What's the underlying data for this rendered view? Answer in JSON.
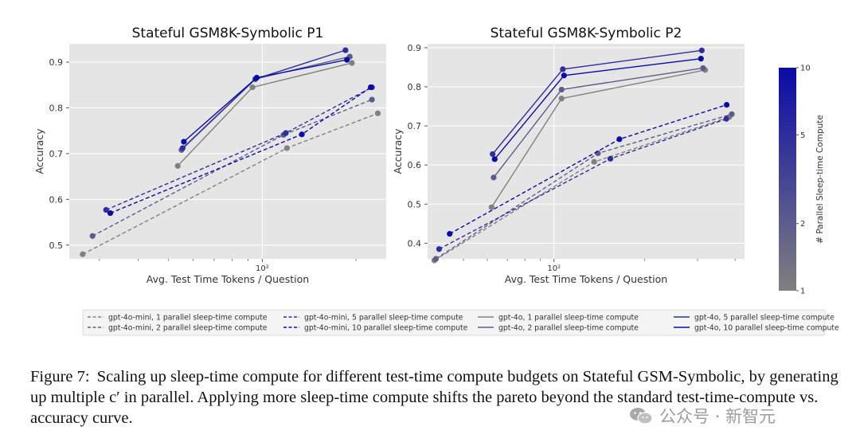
{
  "chart_data": [
    {
      "type": "line",
      "title": "Stateful GSM8K-Symbolic P1",
      "xlabel": "Avg. Test Time Tokens / Question",
      "ylabel": "Accuracy",
      "xscale": "log",
      "xlim": [
        24,
        250
      ],
      "ylim": [
        0.47,
        0.94
      ],
      "yticks": [
        0.5,
        0.6,
        0.7,
        0.8,
        0.9
      ],
      "ytick_labels": [
        "0.5",
        "0.6",
        "0.7",
        "0.8",
        "0.9"
      ],
      "xtick_major": [
        100
      ],
      "xtick_label": "10²",
      "xtick_minor": [
        30,
        40,
        50,
        60,
        70,
        80,
        90,
        200
      ],
      "grid": true,
      "series": [
        {
          "name": "gpt-4o-mini, 1 parallel sleep-time compute",
          "model": "mini",
          "parallel": 1,
          "x": [
            26.5,
            120,
            235
          ],
          "y": [
            0.48,
            0.712,
            0.788
          ]
        },
        {
          "name": "gpt-4o-mini, 2 parallel sleep-time compute",
          "model": "mini",
          "parallel": 2,
          "x": [
            28.5,
            117,
            225
          ],
          "y": [
            0.52,
            0.741,
            0.818
          ]
        },
        {
          "name": "gpt-4o-mini, 5 parallel sleep-time compute",
          "model": "mini",
          "parallel": 5,
          "x": [
            31.5,
            119,
            225
          ],
          "y": [
            0.577,
            0.745,
            0.845
          ]
        },
        {
          "name": "gpt-4o-mini, 10 parallel sleep-time compute",
          "model": "mini",
          "parallel": 10,
          "x": [
            32.5,
            134,
            223
          ],
          "y": [
            0.57,
            0.742,
            0.845
          ]
        },
        {
          "name": "gpt-4o, 1 parallel sleep-time compute",
          "model": "4o",
          "parallel": 1,
          "x": [
            53.5,
            93,
            194
          ],
          "y": [
            0.673,
            0.845,
            0.898
          ]
        },
        {
          "name": "gpt-4o, 2 parallel sleep-time compute",
          "model": "4o",
          "parallel": 2,
          "x": [
            55,
            95,
            191
          ],
          "y": [
            0.708,
            0.863,
            0.912
          ]
        },
        {
          "name": "gpt-4o, 5 parallel sleep-time compute",
          "model": "4o",
          "parallel": 5,
          "x": [
            55.5,
            95,
            185
          ],
          "y": [
            0.712,
            0.863,
            0.926
          ]
        },
        {
          "name": "gpt-4o, 10 parallel sleep-time compute",
          "model": "4o",
          "parallel": 10,
          "x": [
            56,
            96,
            187
          ],
          "y": [
            0.726,
            0.866,
            0.905
          ]
        }
      ]
    },
    {
      "type": "line",
      "title": "Stateful GSM8K-Symbolic P2",
      "xlabel": "Avg. Test Time Tokens / Question",
      "ylabel": "Accuracy",
      "xscale": "log",
      "xlim": [
        38,
        430
      ],
      "ylim": [
        0.36,
        0.91
      ],
      "yticks": [
        0.4,
        0.5,
        0.6,
        0.7,
        0.8,
        0.9
      ],
      "ytick_labels": [
        "0.4",
        "0.5",
        "0.6",
        "0.7",
        "0.8",
        "0.9"
      ],
      "xtick_major": [
        100
      ],
      "xtick_label": "10²",
      "xtick_minor": [
        40,
        50,
        60,
        70,
        80,
        90,
        200,
        300,
        400
      ],
      "grid": true,
      "series": [
        {
          "name": "gpt-4o-mini, 1 parallel sleep-time compute",
          "model": "mini",
          "parallel": 1,
          "x": [
            40,
            136,
            383
          ],
          "y": [
            0.356,
            0.608,
            0.723
          ]
        },
        {
          "name": "gpt-4o-mini, 2 parallel sleep-time compute",
          "model": "mini",
          "parallel": 2,
          "x": [
            40.5,
            140,
            390
          ],
          "y": [
            0.36,
            0.63,
            0.73
          ]
        },
        {
          "name": "gpt-4o-mini, 5 parallel sleep-time compute",
          "model": "mini",
          "parallel": 5,
          "x": [
            41.5,
            154,
            374
          ],
          "y": [
            0.385,
            0.616,
            0.718
          ]
        },
        {
          "name": "gpt-4o-mini, 10 parallel sleep-time compute",
          "model": "mini",
          "parallel": 10,
          "x": [
            45,
            165,
            375
          ],
          "y": [
            0.424,
            0.666,
            0.754
          ]
        },
        {
          "name": "gpt-4o, 1 parallel sleep-time compute",
          "model": "4o",
          "parallel": 1,
          "x": [
            62,
            106,
            318
          ],
          "y": [
            0.492,
            0.77,
            0.843
          ]
        },
        {
          "name": "gpt-4o, 2 parallel sleep-time compute",
          "model": "4o",
          "parallel": 2,
          "x": [
            63,
            106,
            313
          ],
          "y": [
            0.568,
            0.793,
            0.848
          ]
        },
        {
          "name": "gpt-4o, 5 parallel sleep-time compute",
          "model": "4o",
          "parallel": 5,
          "x": [
            62.5,
            107,
            310
          ],
          "y": [
            0.628,
            0.845,
            0.893
          ]
        },
        {
          "name": "gpt-4o, 10 parallel sleep-time compute",
          "model": "4o",
          "parallel": 10,
          "x": [
            63.5,
            108,
            308
          ],
          "y": [
            0.615,
            0.829,
            0.872
          ]
        }
      ]
    }
  ],
  "colorbar": {
    "label": "# Parallel Sleep-time Compute",
    "min": 1,
    "max": 10,
    "ticks": [
      1,
      2,
      5,
      10
    ],
    "tick_labels": [
      "1",
      "2",
      "5",
      "10"
    ],
    "color_low": "#808080",
    "color_high": "#0a0aa8"
  },
  "legend": {
    "placement": "bottom",
    "entries": [
      "gpt-4o-mini, 1 parallel sleep-time compute",
      "gpt-4o-mini, 2 parallel sleep-time compute",
      "gpt-4o-mini, 5 parallel sleep-time compute",
      "gpt-4o-mini, 10 parallel sleep-time compute",
      "gpt-4o, 1 parallel sleep-time compute",
      "gpt-4o, 2 parallel sleep-time compute",
      "gpt-4o, 5 parallel sleep-time compute",
      "gpt-4o, 10 parallel sleep-time compute"
    ]
  },
  "colors": {
    "plot_background": "#e5e5e5",
    "grid": "#ffffff",
    "text": "#333333"
  },
  "caption": {
    "lead": "Figure 7:",
    "text": "Scaling up sleep-time compute for different test-time compute budgets on Stateful GSM-Symbolic, by generating up multiple c′ in parallel. Applying more sleep-time compute shifts the pareto beyond the standard test-time-compute vs. accuracy curve."
  },
  "watermark": {
    "icon": "wechat-icon",
    "text": "公众号 · 新智元"
  }
}
